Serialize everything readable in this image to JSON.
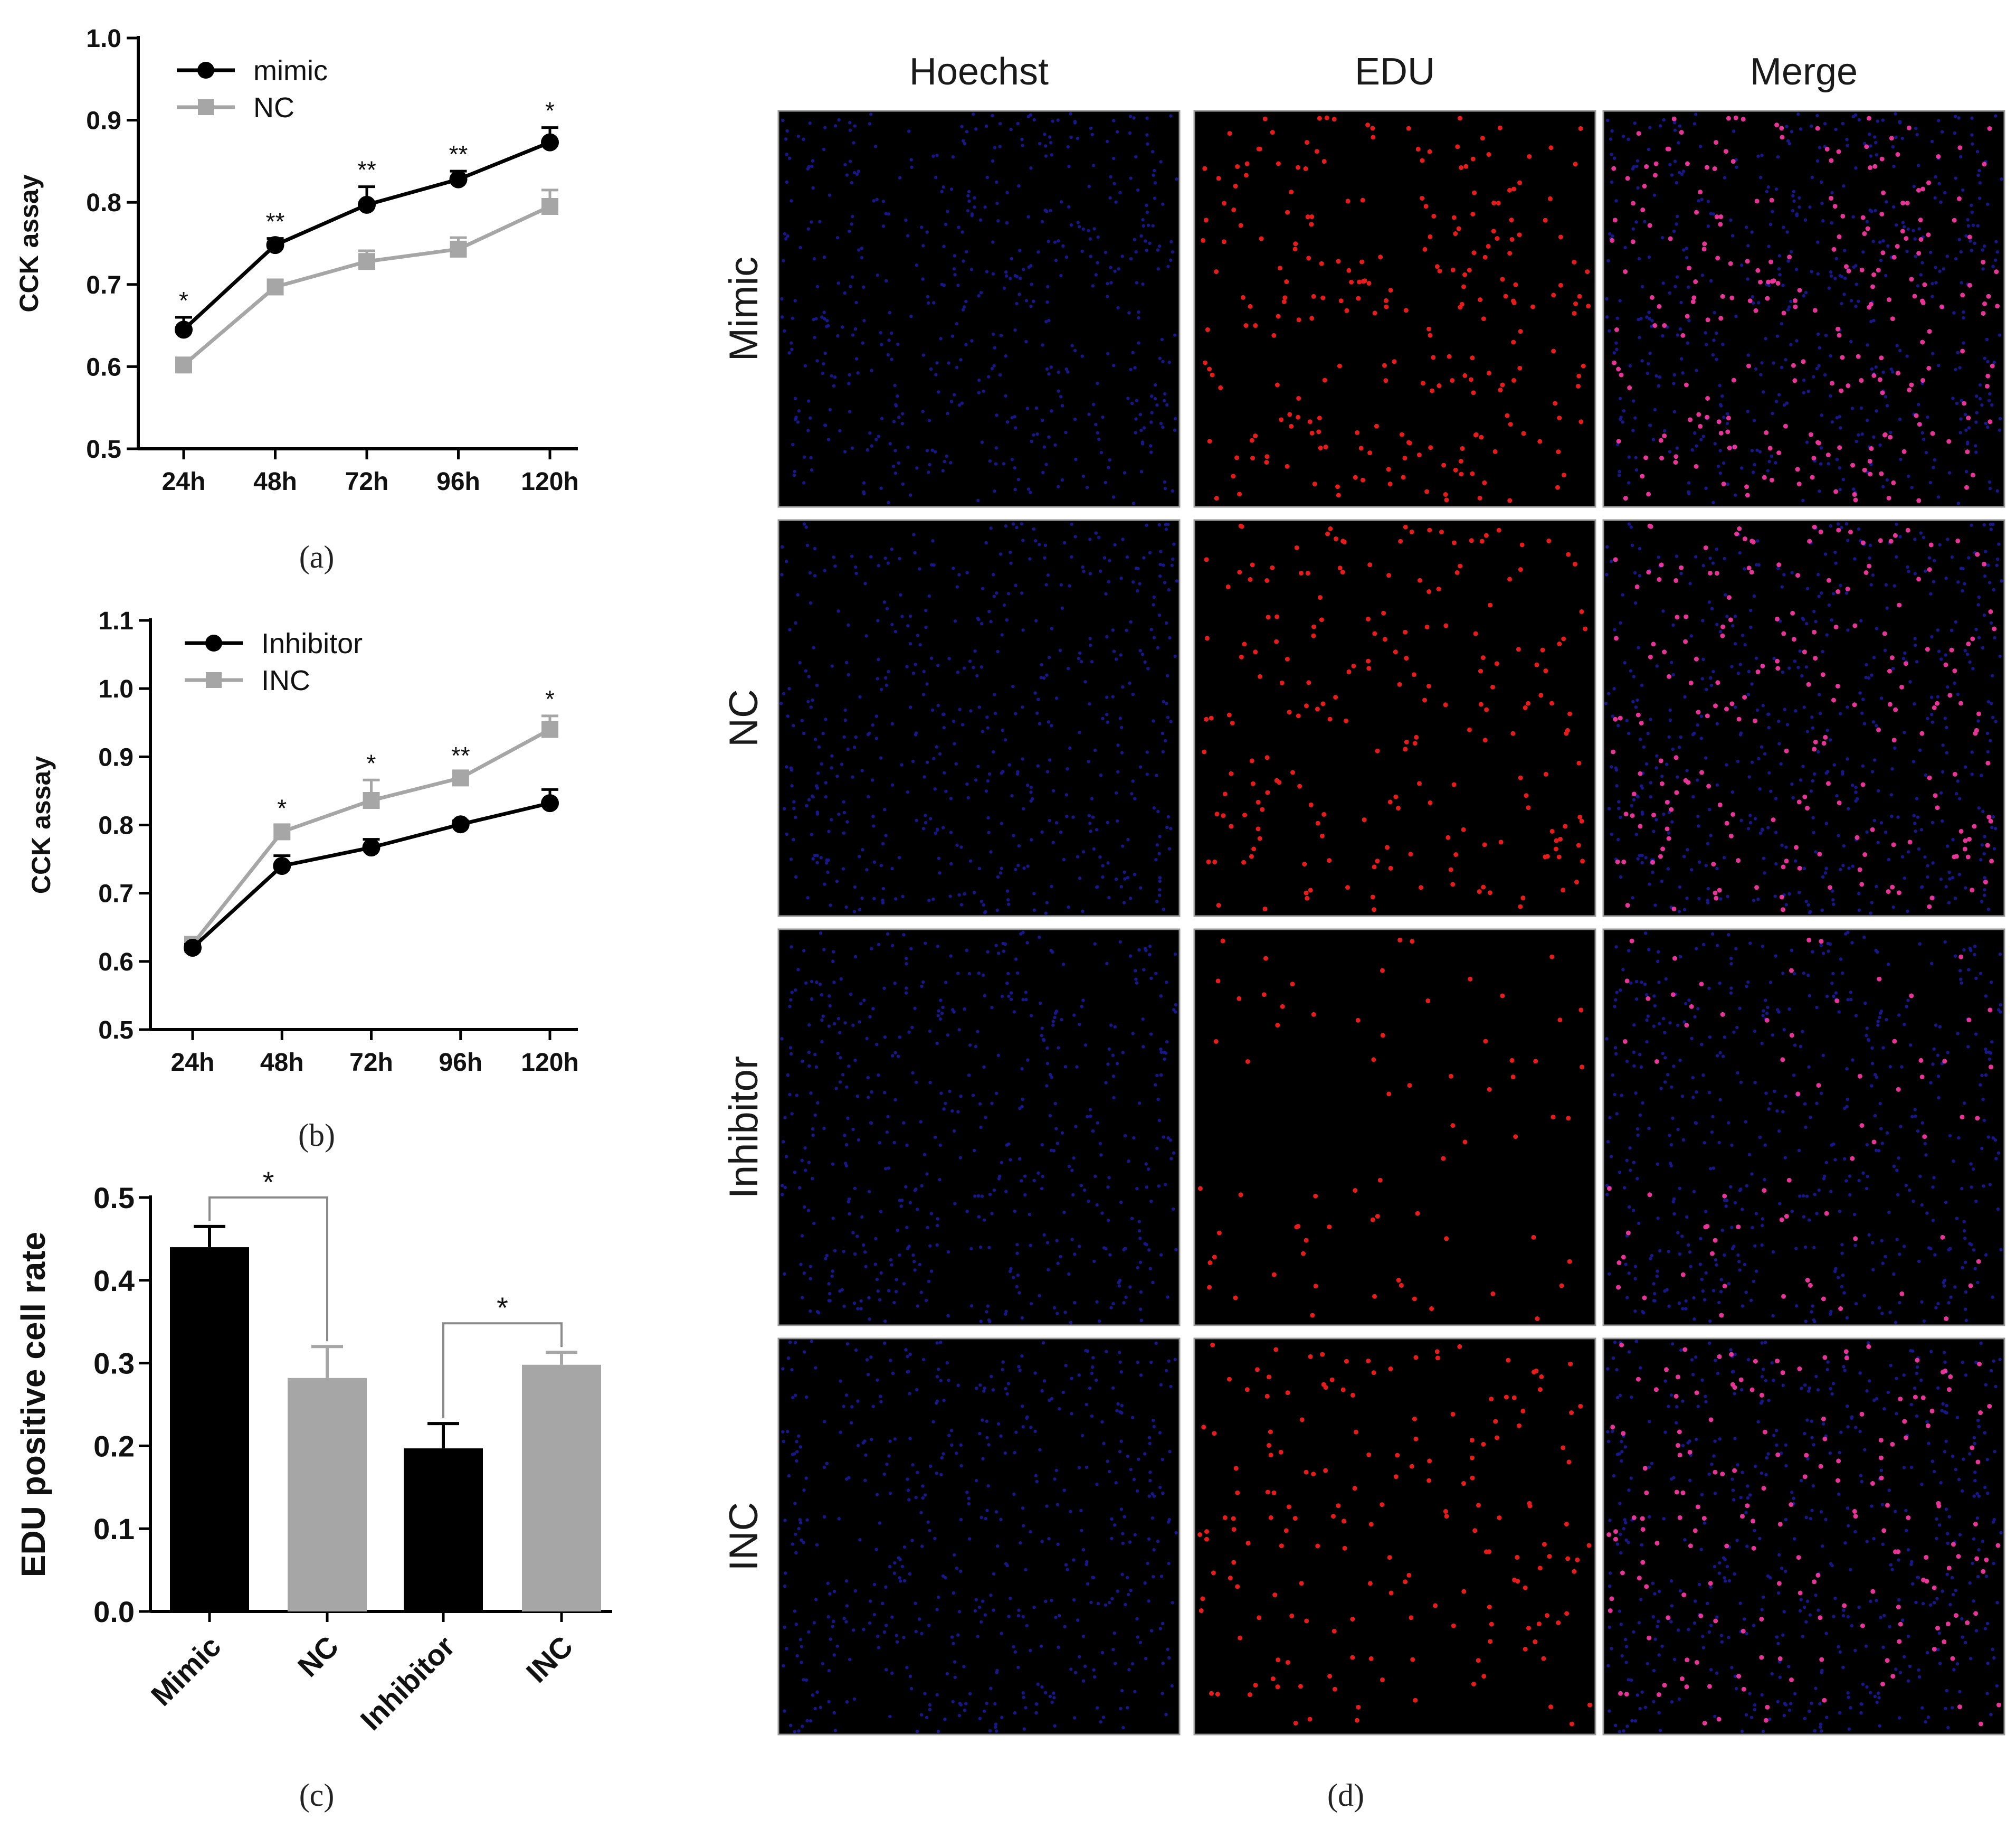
{
  "colors": {
    "black": "#000000",
    "gray": "#a6a6a6",
    "blue_nuclei": "#2b2bff",
    "red_nuclei": "#ff2020",
    "merge_nuclei": "#ff3aa8"
  },
  "panels": {
    "a": "(a)",
    "b": "(b)",
    "c": "(c)",
    "d": "(d)"
  },
  "chart_data": [
    {
      "id": "a",
      "type": "line",
      "x": [
        "24h",
        "48h",
        "72h",
        "96h",
        "120h"
      ],
      "ylabel": "CCK assay",
      "ylim": [
        0.5,
        1.0
      ],
      "yticks": [
        "0.5",
        "0.6",
        "0.7",
        "0.8",
        "0.9",
        "1.0"
      ],
      "legend_position": "top-left",
      "series": [
        {
          "name": "mimic",
          "color": "#000000",
          "marker": "circle",
          "values": [
            0.645,
            0.748,
            0.797,
            0.828,
            0.873
          ],
          "errors": [
            0.015,
            0.008,
            0.022,
            0.01,
            0.018
          ]
        },
        {
          "name": "NC",
          "color": "#a6a6a6",
          "marker": "square",
          "values": [
            0.602,
            0.697,
            0.728,
            0.743,
            0.795
          ],
          "errors": [
            0.005,
            0.005,
            0.013,
            0.014,
            0.02
          ]
        }
      ],
      "significance": [
        "*",
        "**",
        "**",
        "**",
        "*"
      ]
    },
    {
      "id": "b",
      "type": "line",
      "x": [
        "24h",
        "48h",
        "72h",
        "96h",
        "120h"
      ],
      "ylabel": "CCK assay",
      "ylim": [
        0.5,
        1.1
      ],
      "yticks": [
        "0.5",
        "0.6",
        "0.7",
        "0.8",
        "0.9",
        "1.0",
        "1.1"
      ],
      "legend_position": "top-left",
      "series": [
        {
          "name": "Inhibitor",
          "color": "#000000",
          "marker": "circle",
          "values": [
            0.62,
            0.74,
            0.767,
            0.801,
            0.832
          ],
          "errors": [
            0.005,
            0.015,
            0.012,
            0.005,
            0.02
          ]
        },
        {
          "name": "INC",
          "color": "#a6a6a6",
          "marker": "square",
          "values": [
            0.625,
            0.79,
            0.836,
            0.869,
            0.94
          ],
          "errors": [
            0.005,
            0.01,
            0.03,
            0.008,
            0.02
          ]
        }
      ],
      "significance": [
        "",
        "*",
        "*",
        "**",
        "*"
      ]
    },
    {
      "id": "c",
      "type": "bar",
      "categories": [
        "Mimic",
        "NC",
        "Inhibitor",
        "INC"
      ],
      "values": [
        0.44,
        0.282,
        0.197,
        0.298
      ],
      "errors": [
        0.025,
        0.038,
        0.03,
        0.015
      ],
      "bar_colors": [
        "#000000",
        "#a6a6a6",
        "#000000",
        "#a6a6a6"
      ],
      "ylabel": "EDU positive cell rate",
      "ylim": [
        0.0,
        0.5
      ],
      "yticks": [
        "0.0",
        "0.1",
        "0.2",
        "0.3",
        "0.4",
        "0.5"
      ],
      "brackets": [
        {
          "from": 0,
          "to": 1,
          "label": "*"
        },
        {
          "from": 2,
          "to": 3,
          "label": "*"
        }
      ]
    }
  ],
  "micrographs": {
    "columns": [
      "Hoechst",
      "EDU",
      "Merge"
    ],
    "rows": [
      "Mimic",
      "NC",
      "Inhibitor",
      "INC"
    ]
  }
}
